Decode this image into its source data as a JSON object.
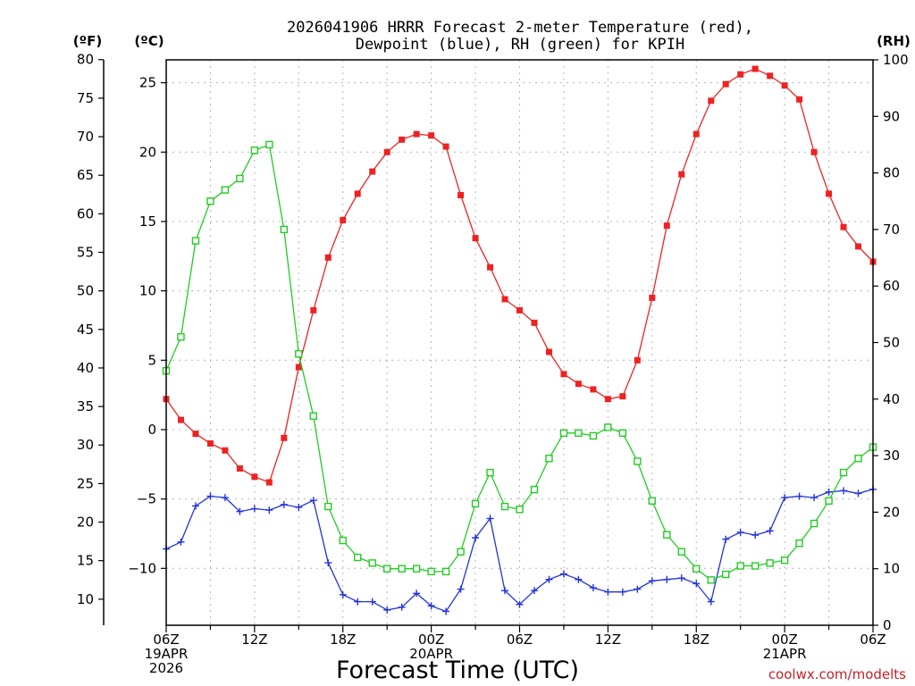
{
  "title_line1": "2026041906 HRRR Forecast 2-meter Temperature (red),",
  "title_line2": "Dewpoint (blue), RH (green) for KPIH",
  "units": {
    "f": "(ºF)",
    "c": "(ºC)",
    "rh": "(RH)"
  },
  "xlabel": "Forecast Time (UTC)",
  "credit": "coolwx.com/modelts",
  "colors": {
    "temperature": "#ee2222",
    "dewpoint": "#2233dd",
    "rh": "#22cc22",
    "grid": "#b4b4b4"
  },
  "chart_data": {
    "type": "line",
    "title": "2026041906 HRRR Forecast 2-meter Temperature (red), Dewpoint (blue), RH (green) for KPIH",
    "xlabel": "Forecast Time (UTC)",
    "x_hours": [
      0,
      1,
      2,
      3,
      4,
      5,
      6,
      7,
      8,
      9,
      10,
      11,
      12,
      13,
      14,
      15,
      16,
      17,
      18,
      19,
      20,
      21,
      22,
      23,
      24,
      25,
      26,
      27,
      28,
      29,
      30,
      31,
      32,
      33,
      34,
      35,
      36,
      37,
      38,
      39,
      40,
      41,
      42,
      43,
      44,
      45,
      46,
      47,
      48
    ],
    "xlim_hours": [
      0,
      48
    ],
    "x_tick_labels": [
      {
        "hour": 0,
        "lines": [
          "06Z",
          "19APR",
          "2026"
        ]
      },
      {
        "hour": 6,
        "lines": [
          "12Z"
        ]
      },
      {
        "hour": 12,
        "lines": [
          "18Z"
        ]
      },
      {
        "hour": 18,
        "lines": [
          "00Z",
          "20APR"
        ]
      },
      {
        "hour": 24,
        "lines": [
          "06Z"
        ]
      },
      {
        "hour": 30,
        "lines": [
          "12Z"
        ]
      },
      {
        "hour": 36,
        "lines": [
          "18Z"
        ]
      },
      {
        "hour": 42,
        "lines": [
          "00Z",
          "21APR"
        ]
      },
      {
        "hour": 48,
        "lines": [
          "06Z"
        ]
      }
    ],
    "c_axis": {
      "label": "(ºC)",
      "ticks": [
        -10,
        -5,
        0,
        5,
        10,
        15,
        20,
        25
      ],
      "ylim": [
        -14.1,
        26.65
      ]
    },
    "f_axis": {
      "label": "(ºF)",
      "ticks": [
        10,
        15,
        20,
        25,
        30,
        35,
        40,
        45,
        50,
        55,
        60,
        65,
        70,
        75,
        80
      ]
    },
    "rh_axis": {
      "label": "(RH)",
      "ticks": [
        0,
        10,
        20,
        30,
        40,
        50,
        60,
        70,
        80,
        90,
        100
      ],
      "ylim": [
        0,
        100
      ]
    },
    "series": [
      {
        "name": "2-meter Temperature",
        "units": "C",
        "axis": "c",
        "color": "#ee2222",
        "marker": "filled-square",
        "values": [
          2.2,
          0.7,
          -0.3,
          -1.0,
          -1.5,
          -2.8,
          -3.4,
          -3.8,
          -0.6,
          4.5,
          8.6,
          12.4,
          15.1,
          17.0,
          18.6,
          20.0,
          20.9,
          21.3,
          21.2,
          20.4,
          16.9,
          13.8,
          11.7,
          9.4,
          8.6,
          7.7,
          5.6,
          4.0,
          3.3,
          2.9,
          2.2,
          2.4,
          5.0,
          9.5,
          14.7,
          18.4,
          21.3,
          23.7,
          24.9,
          25.6,
          26.0,
          25.5,
          24.8,
          23.8,
          20.0,
          17.0,
          14.6,
          13.2,
          12.1
        ]
      },
      {
        "name": "Dewpoint",
        "units": "C",
        "axis": "c",
        "color": "#2233dd",
        "marker": "plus",
        "values": [
          -8.6,
          -8.1,
          -5.5,
          -4.8,
          -4.9,
          -5.9,
          -5.7,
          -5.8,
          -5.4,
          -5.6,
          -5.1,
          -9.6,
          -11.9,
          -12.4,
          -12.4,
          -13.0,
          -12.8,
          -11.8,
          -12.7,
          -13.1,
          -11.5,
          -7.8,
          -6.4,
          -11.6,
          -12.6,
          -11.6,
          -10.8,
          -10.4,
          -10.8,
          -11.4,
          -11.7,
          -11.7,
          -11.5,
          -10.9,
          -10.8,
          -10.7,
          -11.1,
          -12.4,
          -7.9,
          -7.4,
          -7.6,
          -7.3,
          -4.9,
          -4.8,
          -4.9,
          -4.5,
          -4.4,
          -4.6,
          -4.3
        ]
      },
      {
        "name": "RH",
        "units": "%",
        "axis": "rh",
        "color": "#22cc22",
        "marker": "open-square",
        "values": [
          45,
          51,
          68,
          75,
          77,
          79,
          84,
          85,
          70,
          48,
          37,
          21,
          15,
          12,
          11,
          10,
          10,
          10,
          9.5,
          9.5,
          13,
          21.5,
          27,
          21,
          20.5,
          24,
          29.5,
          34,
          34,
          33.5,
          35,
          34,
          29,
          22,
          16,
          13,
          10,
          8,
          9,
          10.5,
          10.5,
          11,
          11.5,
          14.5,
          18,
          22,
          27,
          29.5,
          31.5
        ]
      }
    ]
  }
}
